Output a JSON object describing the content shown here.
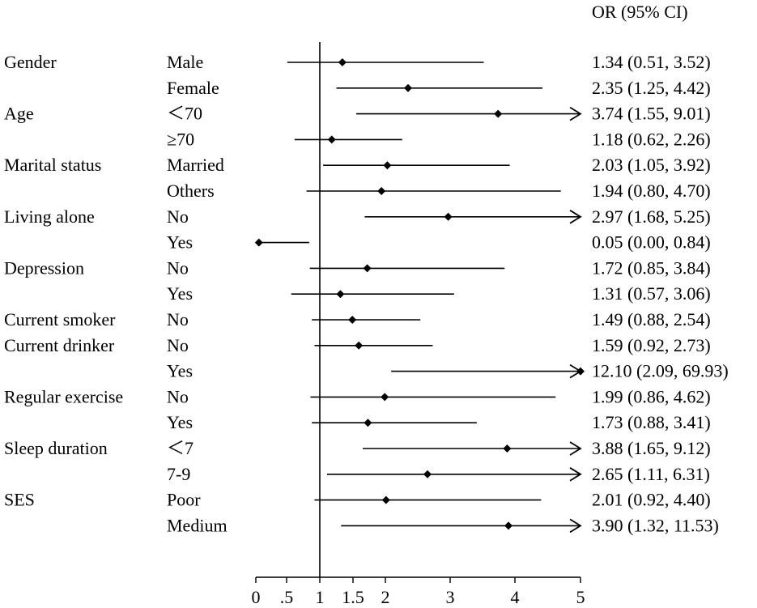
{
  "chart_data": {
    "type": "forest",
    "column_header": "OR (95% CI)",
    "reference_line": 1,
    "x_ticks": [
      {
        "value": 0,
        "label": "0"
      },
      {
        "value": 0.5,
        "label": ".5"
      },
      {
        "value": 1,
        "label": "1"
      },
      {
        "value": 1.5,
        "label": "1.5"
      },
      {
        "value": 2,
        "label": "2"
      },
      {
        "value": 3,
        "label": "3"
      },
      {
        "value": 4,
        "label": "4"
      },
      {
        "value": 5,
        "label": "5"
      }
    ],
    "x_range": [
      0,
      5
    ],
    "rows": [
      {
        "group": "Gender",
        "subgroup": "Male",
        "or": 1.34,
        "lower": 0.51,
        "upper": 3.52,
        "arrow": false,
        "label": "1.34 (0.51, 3.52)"
      },
      {
        "group": "",
        "subgroup": "Female",
        "or": 2.35,
        "lower": 1.25,
        "upper": 4.42,
        "arrow": false,
        "label": "2.35 (1.25, 4.42)"
      },
      {
        "group": "Age",
        "subgroup": "＜70",
        "or": 3.74,
        "lower": 1.55,
        "upper": 9.01,
        "arrow": true,
        "label": "3.74 (1.55, 9.01)"
      },
      {
        "group": "",
        "subgroup": "≥70",
        "or": 1.18,
        "lower": 0.62,
        "upper": 2.26,
        "arrow": false,
        "label": "1.18 (0.62, 2.26)"
      },
      {
        "group": "Marital status",
        "subgroup": "Married",
        "or": 2.03,
        "lower": 1.05,
        "upper": 3.92,
        "arrow": false,
        "label": "2.03 (1.05, 3.92)"
      },
      {
        "group": "",
        "subgroup": "Others",
        "or": 1.94,
        "lower": 0.8,
        "upper": 4.7,
        "arrow": false,
        "label": "1.94 (0.80, 4.70)"
      },
      {
        "group": "Living alone",
        "subgroup": "No",
        "or": 2.97,
        "lower": 1.68,
        "upper": 5.25,
        "arrow": true,
        "label": "2.97 (1.68, 5.25)"
      },
      {
        "group": "",
        "subgroup": "Yes",
        "or": 0.05,
        "lower": 0.0,
        "upper": 0.84,
        "arrow": false,
        "label": "0.05 (0.00, 0.84)"
      },
      {
        "group": "Depression",
        "subgroup": "No",
        "or": 1.72,
        "lower": 0.85,
        "upper": 3.84,
        "arrow": false,
        "label": "1.72 (0.85, 3.84)"
      },
      {
        "group": "",
        "subgroup": "Yes",
        "or": 1.31,
        "lower": 0.57,
        "upper": 3.06,
        "arrow": false,
        "label": "1.31 (0.57, 3.06)"
      },
      {
        "group": "Current smoker",
        "subgroup": "No",
        "or": 1.49,
        "lower": 0.88,
        "upper": 2.54,
        "arrow": false,
        "label": "1.49 (0.88, 2.54)"
      },
      {
        "group": "Current drinker",
        "subgroup": "No",
        "or": 1.59,
        "lower": 0.92,
        "upper": 2.73,
        "arrow": false,
        "label": "1.59 (0.92, 2.73)"
      },
      {
        "group": "",
        "subgroup": "Yes",
        "or": 12.1,
        "lower": 2.09,
        "upper": 69.93,
        "arrow": true,
        "label": "12.10 (2.09, 69.93)"
      },
      {
        "group": "Regular exercise",
        "subgroup": "No",
        "or": 1.99,
        "lower": 0.86,
        "upper": 4.62,
        "arrow": false,
        "label": "1.99 (0.86, 4.62)"
      },
      {
        "group": "",
        "subgroup": "Yes",
        "or": 1.73,
        "lower": 0.88,
        "upper": 3.41,
        "arrow": false,
        "label": "1.73 (0.88, 3.41)"
      },
      {
        "group": "Sleep duration",
        "subgroup": "＜7",
        "or": 3.88,
        "lower": 1.65,
        "upper": 9.12,
        "arrow": true,
        "label": "3.88 (1.65, 9.12)"
      },
      {
        "group": "",
        "subgroup": "7-9",
        "or": 2.65,
        "lower": 1.11,
        "upper": 6.31,
        "arrow": true,
        "label": "2.65 (1.11, 6.31)"
      },
      {
        "group": "SES",
        "subgroup": "Poor",
        "or": 2.01,
        "lower": 0.92,
        "upper": 4.4,
        "arrow": false,
        "label": "2.01 (0.92, 4.40)"
      },
      {
        "group": "",
        "subgroup": "Medium",
        "or": 3.9,
        "lower": 1.32,
        "upper": 11.53,
        "arrow": true,
        "label": "3.90 (1.32, 11.53)"
      }
    ]
  }
}
